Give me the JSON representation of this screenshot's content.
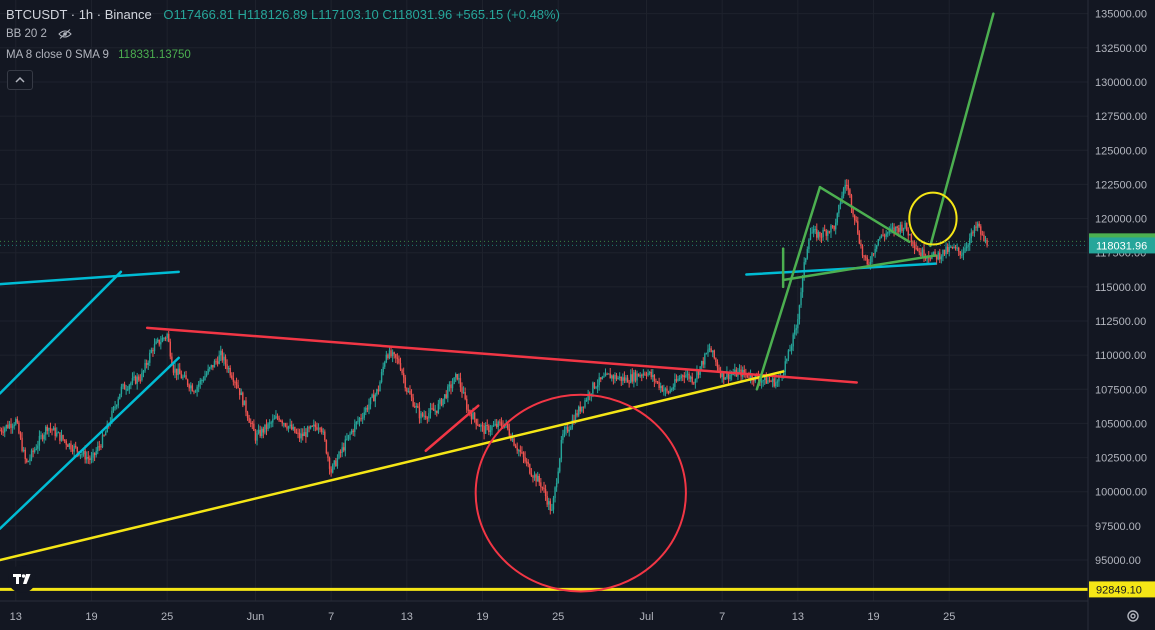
{
  "legend": {
    "symbol": "BTCUSDT · 1h · Binance",
    "ohlc": "O117466.81 H118126.89 L117103.10 C118031.96 +565.15 (+0.48%)",
    "bb": "BB 20 2",
    "ma_label": "MA 8 close 0 SMA 9",
    "ma_value": "118331.13750"
  },
  "colors": {
    "background": "#131722",
    "up": "#26a69a",
    "down": "#ef5350",
    "ma": "#4caf50",
    "cyan": "#00bcd4",
    "yellow": "#f5e616",
    "red": "#f23645",
    "green": "#4caf50",
    "axis_text": "#b2b5be"
  },
  "chart_data": {
    "type": "candlestick",
    "y_axis": {
      "side": "right",
      "tick_labels": [
        "135000.00",
        "132500.00",
        "130000.00",
        "127500.00",
        "125000.00",
        "122500.00",
        "120000.00",
        "117500.00",
        "115000.00",
        "112500.00",
        "110000.00",
        "107500.00",
        "105000.00",
        "102500.00",
        "100000.00",
        "97500.00",
        "95000.00"
      ],
      "ylim": [
        92000,
        136000
      ]
    },
    "x_axis": {
      "tick_labels": [
        "13",
        "19",
        "25",
        "Jun",
        "7",
        "13",
        "19",
        "25",
        "Jul",
        "7",
        "13",
        "19",
        "25"
      ],
      "tick_bars": [
        0,
        144,
        288,
        456,
        600,
        744,
        888,
        1032,
        1200,
        1344,
        1488,
        1632,
        1776
      ],
      "bar_range": [
        -30,
        2040
      ]
    },
    "price_labels": [
      {
        "value": 118331.1375,
        "text": "118331.1375",
        "color": "#4caf50"
      },
      {
        "value": 118031.96,
        "text": "118031.96",
        "color": "#26a69a"
      },
      {
        "value": 92849.1,
        "text": "92849.10",
        "color": "#f5e616"
      }
    ],
    "candles": {
      "anchors": [
        [
          -30,
          104500
        ],
        [
          0,
          105200
        ],
        [
          20,
          102000
        ],
        [
          60,
          104800
        ],
        [
          100,
          103500
        ],
        [
          144,
          102300
        ],
        [
          168,
          104000
        ],
        [
          200,
          107500
        ],
        [
          240,
          108500
        ],
        [
          260,
          110500
        ],
        [
          288,
          111500
        ],
        [
          300,
          109000
        ],
        [
          340,
          107500
        ],
        [
          370,
          109000
        ],
        [
          390,
          110000
        ],
        [
          420,
          108000
        ],
        [
          456,
          104000
        ],
        [
          500,
          105500
        ],
        [
          540,
          104000
        ],
        [
          580,
          105000
        ],
        [
          600,
          101500
        ],
        [
          640,
          104500
        ],
        [
          690,
          107500
        ],
        [
          705,
          110200
        ],
        [
          730,
          109500
        ],
        [
          744,
          107500
        ],
        [
          770,
          105500
        ],
        [
          800,
          106000
        ],
        [
          840,
          108500
        ],
        [
          860,
          106000
        ],
        [
          890,
          104500
        ],
        [
          930,
          105000
        ],
        [
          950,
          103500
        ],
        [
          980,
          101500
        ],
        [
          1000,
          100500
        ],
        [
          1020,
          98500
        ],
        [
          1040,
          104000
        ],
        [
          1080,
          106500
        ],
        [
          1100,
          107800
        ],
        [
          1130,
          108500
        ],
        [
          1160,
          108200
        ],
        [
          1200,
          108800
        ],
        [
          1240,
          107200
        ],
        [
          1270,
          108700
        ],
        [
          1290,
          108200
        ],
        [
          1320,
          110500
        ],
        [
          1344,
          108500
        ],
        [
          1380,
          108700
        ],
        [
          1420,
          108200
        ],
        [
          1450,
          108000
        ],
        [
          1470,
          110000
        ],
        [
          1485,
          112000
        ],
        [
          1490,
          113500
        ],
        [
          1500,
          116500
        ],
        [
          1510,
          119000
        ],
        [
          1530,
          118800
        ],
        [
          1560,
          119500
        ],
        [
          1570,
          121500
        ],
        [
          1580,
          122700
        ],
        [
          1600,
          119500
        ],
        [
          1610,
          117500
        ],
        [
          1620,
          116500
        ],
        [
          1640,
          118500
        ],
        [
          1660,
          119000
        ],
        [
          1690,
          119500
        ],
        [
          1720,
          117500
        ],
        [
          1750,
          117200
        ],
        [
          1780,
          117800
        ],
        [
          1800,
          117500
        ],
        [
          1810,
          118200
        ],
        [
          1830,
          119500
        ],
        [
          1840,
          118500
        ],
        [
          1850,
          118000
        ]
      ],
      "last_close": 118031.96
    },
    "ma_line": {
      "name": "MA 8 close 0 SMA 9"
    },
    "annotations": {
      "lines": [
        {
          "name": "cyan-long-trendline",
          "color": "#00bcd4",
          "points": [
            [
              -30,
              115200
            ],
            [
              310,
              116100
            ]
          ]
        },
        {
          "name": "cyan-long-trendline-2",
          "color": "#00bcd4",
          "points": [
            [
              1390,
              115900
            ],
            [
              1750,
              116700
            ]
          ]
        },
        {
          "name": "cyan-channel-lower",
          "color": "#00bcd4",
          "points": [
            [
              -30,
              97300
            ],
            [
              310,
              109800
            ]
          ]
        },
        {
          "name": "cyan-channel-upper",
          "color": "#00bcd4",
          "points": [
            [
              -30,
              107200
            ],
            [
              200,
              116100
            ]
          ]
        },
        {
          "name": "red-descending-trendline",
          "color": "#f23645",
          "points": [
            [
              250,
              112000
            ],
            [
              1600,
              108000
            ]
          ]
        },
        {
          "name": "red-short-trendline",
          "color": "#f23645",
          "points": [
            [
              780,
              103000
            ],
            [
              880,
              106300
            ]
          ]
        },
        {
          "name": "yellow-ascending-trendline",
          "color": "#f5e616",
          "points": [
            [
              -30,
              95000
            ],
            [
              1460,
              108800
            ]
          ]
        },
        {
          "name": "yellow-support-line",
          "color": "#f5e616",
          "points": [
            [
              -30,
              92849.1
            ],
            [
              2040,
              92849.1
            ]
          ]
        },
        {
          "name": "green-impulse-leg",
          "color": "#4caf50",
          "points": [
            [
              1410,
              107500
            ],
            [
              1530,
              122300
            ]
          ]
        },
        {
          "name": "green-triangle-upper",
          "color": "#4caf50",
          "points": [
            [
              1530,
              122300
            ],
            [
              1700,
              118300
            ]
          ]
        },
        {
          "name": "green-triangle-lower",
          "color": "#4caf50",
          "points": [
            [
              1460,
              115500
            ],
            [
              1750,
              117300
            ]
          ]
        },
        {
          "name": "green-breakout-projection",
          "color": "#4caf50",
          "points": [
            [
              1740,
              118000
            ],
            [
              1860,
              135000
            ]
          ]
        },
        {
          "name": "green-vertical-leg",
          "color": "#4caf50",
          "points": [
            [
              1460,
              115000
            ],
            [
              1460,
              117800
            ]
          ]
        }
      ],
      "circles": [
        {
          "name": "red-circle",
          "color": "#f23645",
          "cx": 1075,
          "cy": 99900,
          "rx": 200,
          "ry": 7200
        },
        {
          "name": "yellow-circle",
          "color": "#f5e616",
          "cx": 1745,
          "cy": 120000,
          "rx": 45,
          "ry": 1900
        }
      ]
    }
  }
}
